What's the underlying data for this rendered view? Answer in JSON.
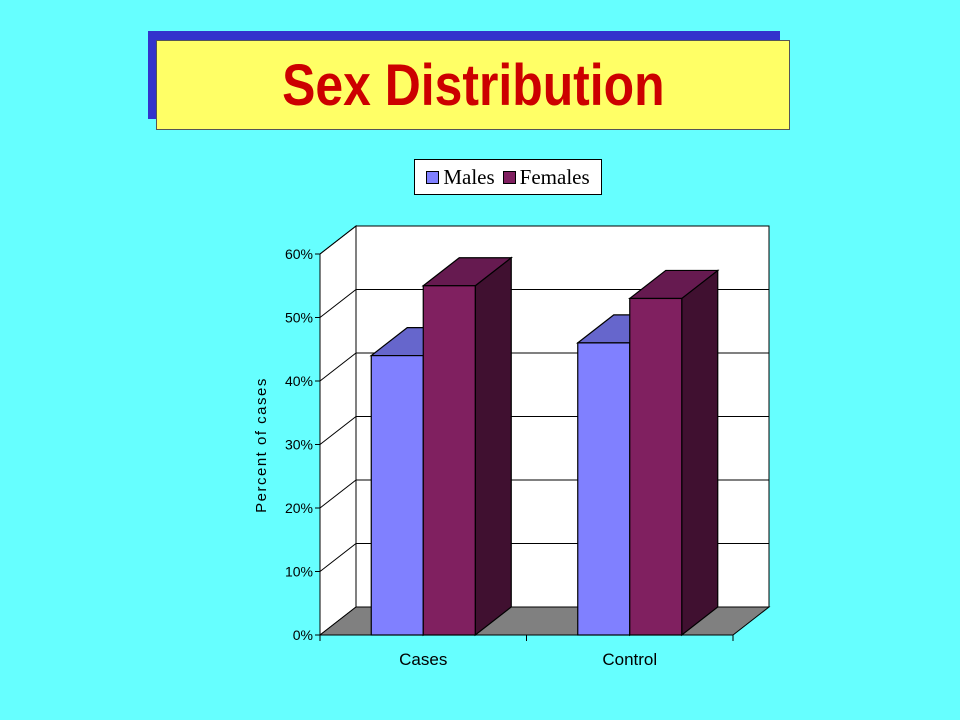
{
  "title": "Sex Distribution",
  "legend": [
    {
      "label": "Males",
      "color": "#8080FF"
    },
    {
      "label": "Females",
      "color": "#802060"
    }
  ],
  "chart_data": {
    "type": "bar",
    "title": "",
    "xlabel": "",
    "ylabel": "Percent of cases",
    "categories": [
      "Cases",
      "Control"
    ],
    "series": [
      {
        "name": "Males",
        "values": [
          44,
          46
        ],
        "color": "#8080FF"
      },
      {
        "name": "Females",
        "values": [
          55,
          53
        ],
        "color": "#802060"
      }
    ],
    "ylim": [
      0,
      60
    ],
    "yticks": [
      "0%",
      "10%",
      "20%",
      "30%",
      "40%",
      "50%",
      "60%"
    ],
    "grid": true,
    "three_d": true,
    "legend_position": "top"
  }
}
